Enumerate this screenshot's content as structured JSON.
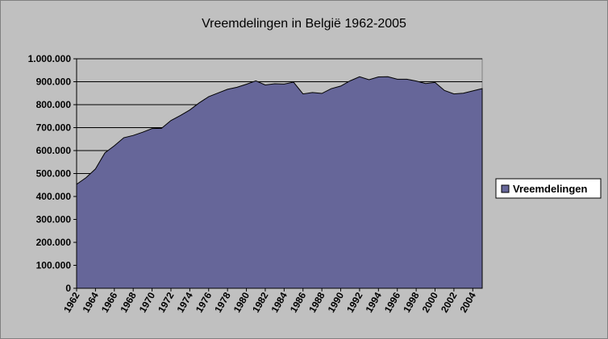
{
  "chart_data": {
    "type": "area",
    "title": "Vreemdelingen in België 1962-2005",
    "xlabel": "",
    "ylabel": "",
    "ylim": [
      0,
      1000000
    ],
    "y_ticks": [
      0,
      100000,
      200000,
      300000,
      400000,
      500000,
      600000,
      700000,
      800000,
      900000,
      1000000
    ],
    "y_tick_labels": [
      "0",
      "100.000",
      "200.000",
      "300.000",
      "400.000",
      "500.000",
      "600.000",
      "700.000",
      "800.000",
      "900.000",
      "1.000.000"
    ],
    "x_tick_labels": [
      "1962",
      "1964",
      "1966",
      "1968",
      "1970",
      "1972",
      "1974",
      "1976",
      "1978",
      "1980",
      "1982",
      "1984",
      "1986",
      "1988",
      "1990",
      "1992",
      "1994",
      "1996",
      "1998",
      "2000",
      "2002",
      "2004"
    ],
    "legend": {
      "position": "right",
      "entries": [
        "Vreemdelingen"
      ]
    },
    "grid": true,
    "colors": {
      "area": "#666699",
      "plot_bg": "#c0c0c0",
      "chart_bg": "#c0c0c0",
      "gridline": "#000000",
      "legend_bg": "#ffffff"
    },
    "x": [
      1962,
      1963,
      1964,
      1965,
      1966,
      1967,
      1968,
      1969,
      1970,
      1971,
      1972,
      1973,
      1974,
      1975,
      1976,
      1977,
      1978,
      1979,
      1980,
      1981,
      1982,
      1983,
      1984,
      1985,
      1986,
      1987,
      1988,
      1989,
      1990,
      1991,
      1992,
      1993,
      1994,
      1995,
      1996,
      1997,
      1998,
      1999,
      2000,
      2001,
      2002,
      2003,
      2004,
      2005
    ],
    "series": [
      {
        "name": "Vreemdelingen",
        "values": [
          453000,
          482000,
          520000,
          590000,
          621000,
          656000,
          666000,
          680000,
          696000,
          697000,
          731000,
          753000,
          777000,
          808000,
          835000,
          851000,
          867000,
          876000,
          889000,
          904000,
          886000,
          891000,
          890000,
          898000,
          847000,
          853000,
          849000,
          870000,
          881000,
          904000,
          922000,
          909000,
          921000,
          922000,
          911000,
          911000,
          903000,
          892000,
          897000,
          862000,
          847000,
          850000,
          860000,
          870000
        ]
      }
    ]
  }
}
